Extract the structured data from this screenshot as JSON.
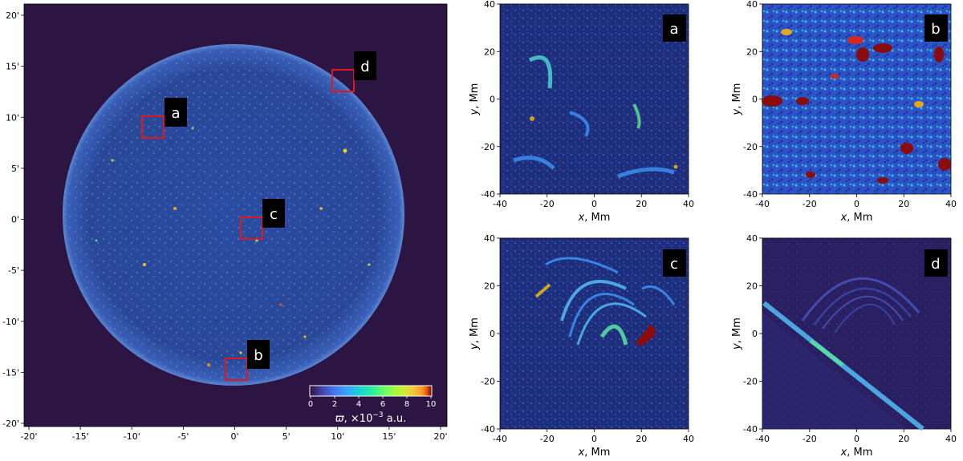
{
  "main_panel": {
    "x_ticks": [
      "-20'",
      "-15'",
      "-10'",
      "-5'",
      "0'",
      "5'",
      "10'",
      "15'",
      "20'"
    ],
    "y_ticks": [
      "20'",
      "15'",
      "10'",
      "5'",
      "0'",
      "-5'",
      "-10'",
      "-15'",
      "-20'"
    ],
    "regions": [
      {
        "id": "a",
        "label": "a"
      },
      {
        "id": "b",
        "label": "b"
      },
      {
        "id": "c",
        "label": "c"
      },
      {
        "id": "d",
        "label": "d"
      }
    ],
    "colorbar": {
      "ticks": [
        "0",
        "2",
        "4",
        "6",
        "8",
        "10"
      ],
      "label_symbol": "ϖ",
      "label_text": ", ×10",
      "label_exp": "−3",
      "label_unit": " a.u."
    }
  },
  "zoom_panels": [
    {
      "id": "a",
      "label": "a"
    },
    {
      "id": "b",
      "label": "b"
    },
    {
      "id": "c",
      "label": "c"
    },
    {
      "id": "d",
      "label": "d"
    }
  ],
  "axes": {
    "x_ticks": [
      "-40",
      "-20",
      "0",
      "20",
      "40"
    ],
    "y_ticks": [
      "40",
      "20",
      "0",
      "-20",
      "-40"
    ],
    "x_label_var": "x",
    "x_label_unit": ", Mm",
    "y_label_var": "y",
    "y_label_unit": ", Mm"
  },
  "colors": {
    "background": "#2c1542",
    "disk": "#2d4a9c",
    "box": "#e0181e",
    "tag_bg": "#000000"
  }
}
